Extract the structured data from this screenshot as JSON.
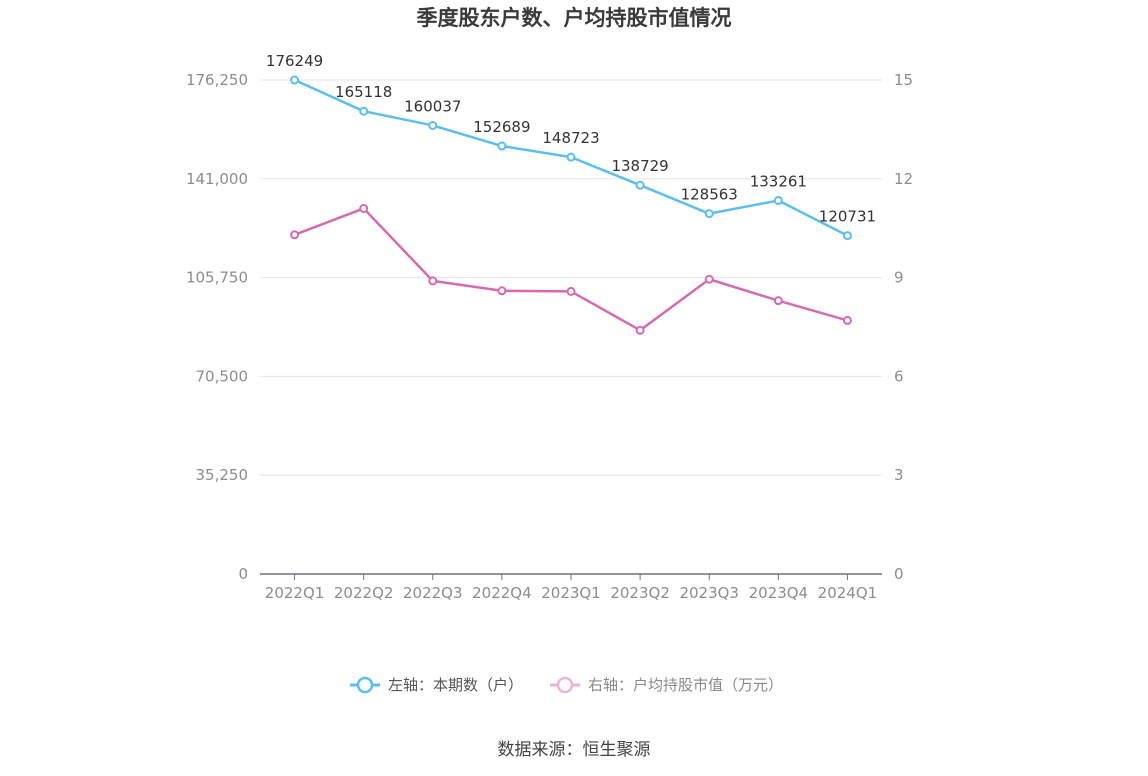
{
  "chart_data": {
    "type": "line",
    "title": "季度股东户数、户均持股市值情况",
    "categories": [
      "2022Q1",
      "2022Q2",
      "2022Q3",
      "2022Q4",
      "2023Q1",
      "2023Q2",
      "2023Q3",
      "2023Q4",
      "2024Q1"
    ],
    "series": [
      {
        "name": "左轴：本期数（户）",
        "axis": "left",
        "color": "#5bbef0",
        "values": [
          176249,
          165118,
          160037,
          152689,
          148723,
          138729,
          128563,
          133261,
          120731
        ],
        "data_labels": [
          "176249",
          "165118",
          "160037",
          "152689",
          "148723",
          "138729",
          "128563",
          "133261",
          "120731"
        ]
      },
      {
        "name": "右轴：户均持股市值（万元）",
        "axis": "right",
        "color": "#d56aae",
        "values": [
          10.3,
          11.1,
          8.9,
          8.6,
          8.58,
          7.4,
          8.95,
          8.3,
          7.7
        ]
      }
    ],
    "y_left": {
      "min": 0,
      "max": 176250,
      "ticks": [
        0,
        35250,
        70500,
        105750,
        141000,
        176250
      ],
      "tick_labels": [
        "0",
        "35,250",
        "70,500",
        "105,750",
        "141,000",
        "176,250"
      ]
    },
    "y_right": {
      "min": 0,
      "max": 15,
      "ticks": [
        0,
        3,
        6,
        9,
        12,
        15
      ],
      "tick_labels": [
        "0",
        "3",
        "6",
        "9",
        "12",
        "15"
      ]
    },
    "grid": true,
    "legend_position": "bottom-center"
  },
  "source_text": "数据来源：恒生聚源"
}
